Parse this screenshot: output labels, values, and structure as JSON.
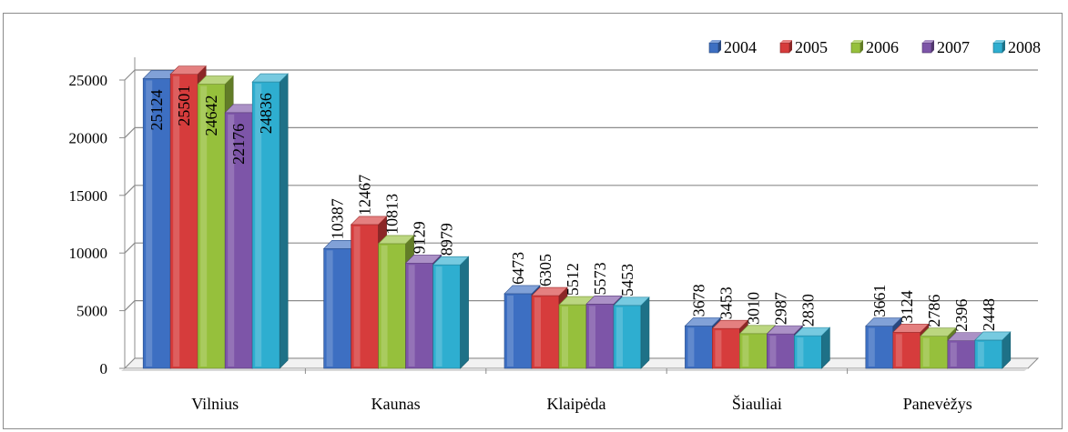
{
  "chart_data": {
    "type": "bar",
    "style": "3d-clustered-column",
    "title": "",
    "xlabel": "",
    "ylabel": "",
    "ylim": [
      0,
      25000
    ],
    "y_ticks": [
      "0",
      "5000",
      "10000",
      "15000",
      "20000",
      "25000"
    ],
    "grid": true,
    "legend_position": "top-right",
    "categories": [
      "Vilnius",
      "Kaunas",
      "Klaipėda",
      "Šiauliai",
      "Panevėžys"
    ],
    "series": [
      {
        "name": "2004",
        "color": "#3d6fc2",
        "values": [
          25124,
          10387,
          6473,
          3678,
          3661
        ]
      },
      {
        "name": "2005",
        "color": "#d63c3c",
        "values": [
          25501,
          12467,
          6305,
          3453,
          3124
        ]
      },
      {
        "name": "2006",
        "color": "#96c03c",
        "values": [
          24642,
          10813,
          5512,
          3010,
          2786
        ]
      },
      {
        "name": "2007",
        "color": "#7d55a8",
        "values": [
          22176,
          9129,
          5573,
          2987,
          2396
        ]
      },
      {
        "name": "2008",
        "color": "#2eaed0",
        "values": [
          24836,
          8979,
          5453,
          2830,
          2448
        ]
      }
    ]
  }
}
